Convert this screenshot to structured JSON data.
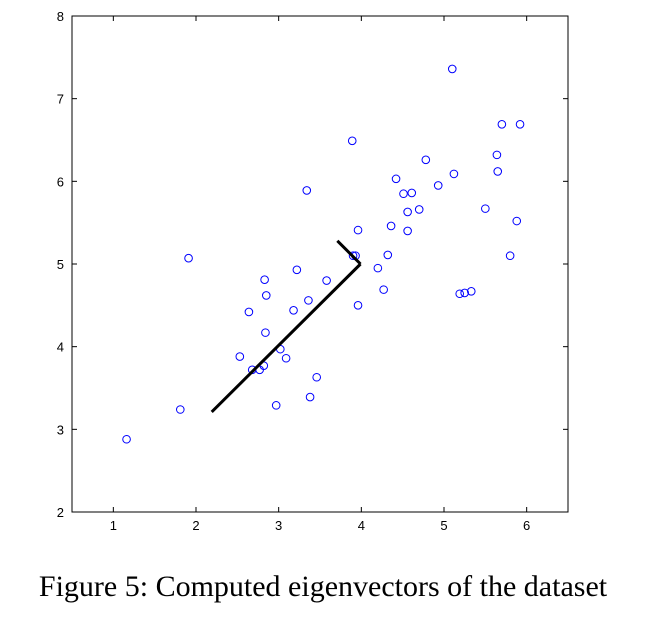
{
  "caption": "Figure 5: Computed eigenvectors of the dataset",
  "chart_data": {
    "type": "scatter",
    "xlim": [
      0.5,
      6.5
    ],
    "ylim": [
      2,
      8
    ],
    "xticks": [
      1,
      2,
      3,
      4,
      5,
      6
    ],
    "yticks": [
      2,
      3,
      4,
      5,
      6,
      7,
      8
    ],
    "grid": false,
    "marker_color": "#0000ff",
    "line_color": "#000000",
    "points": [
      [
        1.16,
        2.88
      ],
      [
        1.81,
        3.24
      ],
      [
        1.91,
        5.07
      ],
      [
        2.53,
        3.88
      ],
      [
        2.64,
        4.42
      ],
      [
        2.68,
        3.72
      ],
      [
        2.77,
        3.72
      ],
      [
        2.82,
        3.77
      ],
      [
        2.83,
        4.81
      ],
      [
        2.85,
        4.62
      ],
      [
        2.84,
        4.17
      ],
      [
        2.97,
        3.29
      ],
      [
        3.02,
        3.97
      ],
      [
        3.09,
        3.86
      ],
      [
        3.18,
        4.44
      ],
      [
        3.22,
        4.93
      ],
      [
        3.34,
        5.89
      ],
      [
        3.36,
        4.56
      ],
      [
        3.38,
        3.39
      ],
      [
        3.46,
        3.63
      ],
      [
        3.58,
        4.8
      ],
      [
        3.89,
        6.49
      ],
      [
        3.9,
        5.1
      ],
      [
        3.93,
        5.1
      ],
      [
        3.96,
        4.5
      ],
      [
        3.96,
        5.41
      ],
      [
        4.2,
        4.95
      ],
      [
        4.27,
        4.69
      ],
      [
        4.32,
        5.11
      ],
      [
        4.36,
        5.46
      ],
      [
        4.42,
        6.03
      ],
      [
        4.51,
        5.85
      ],
      [
        4.56,
        5.63
      ],
      [
        4.56,
        5.4
      ],
      [
        4.61,
        5.86
      ],
      [
        4.7,
        5.66
      ],
      [
        4.78,
        6.26
      ],
      [
        4.93,
        5.95
      ],
      [
        5.1,
        7.36
      ],
      [
        5.12,
        6.09
      ],
      [
        5.19,
        4.64
      ],
      [
        5.25,
        4.65
      ],
      [
        5.33,
        4.67
      ],
      [
        5.5,
        5.67
      ],
      [
        5.64,
        6.32
      ],
      [
        5.65,
        6.12
      ],
      [
        5.7,
        6.69
      ],
      [
        5.8,
        5.1
      ],
      [
        5.88,
        5.52
      ],
      [
        5.92,
        6.69
      ]
    ],
    "eigenvectors": [
      {
        "from": [
          3.99,
          5.0
        ],
        "to": [
          2.19,
          3.21
        ]
      },
      {
        "from": [
          3.99,
          5.0
        ],
        "to": [
          3.71,
          5.28
        ]
      }
    ]
  }
}
